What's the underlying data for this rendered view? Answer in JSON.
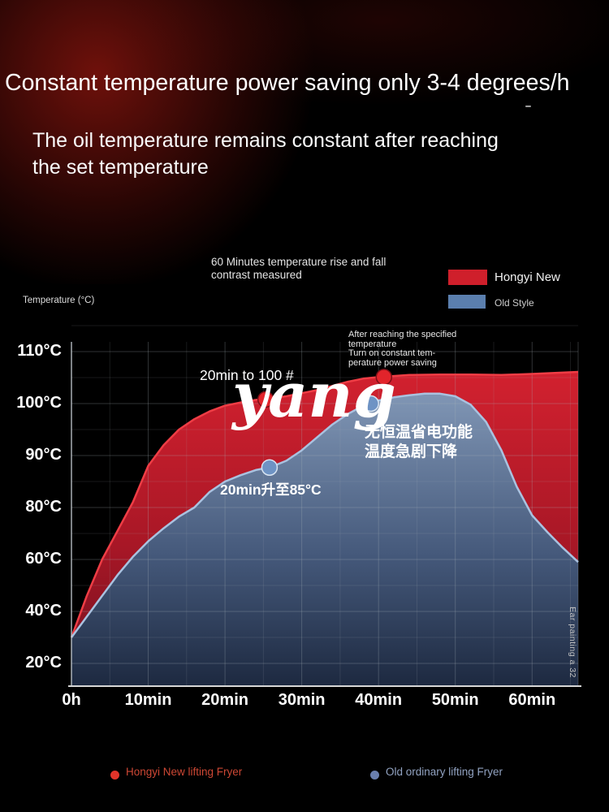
{
  "page": {
    "title": "Constant temperature power saving only 3-4 degrees/h",
    "dash": "-",
    "subtitle_line1": "The oil temperature remains constant after reaching",
    "subtitle_line2": "the set temperature"
  },
  "chart": {
    "caption_line1": "60 Minutes temperature rise and fall",
    "caption_line2": "contrast measured",
    "y_axis_label": "Temperature (°C)",
    "legend": [
      {
        "label": "Hongyi New",
        "color": "#cf1f2b"
      },
      {
        "label": "Old Style",
        "color": "#5b7fae"
      }
    ],
    "watermark": "yang",
    "side_note": "Ear painting a 32"
  },
  "chart_data": {
    "type": "area",
    "title": "60 Minutes temperature rise and fall contrast measured",
    "xlabel": "",
    "ylabel": "Temperature (°C)",
    "x_unit": "minutes",
    "x_ticks": [
      "0h",
      "10min",
      "20min",
      "30min",
      "40min",
      "50min",
      "60min"
    ],
    "x_tick_values": [
      0,
      10,
      20,
      30,
      40,
      50,
      60
    ],
    "y_ticks": [
      "110°C",
      "100°C",
      "90°C",
      "80°C",
      "60°C",
      "40°C",
      "20°C"
    ],
    "y_tick_values": [
      110,
      100,
      90,
      80,
      60,
      40,
      20
    ],
    "grid": true,
    "series": [
      {
        "name": "Hongyi New",
        "line_color": "#ef3d45",
        "fill": [
          "#d2212f",
          "#a81726",
          "#701020"
        ],
        "points": [
          [
            0,
            30
          ],
          [
            2,
            46
          ],
          [
            4,
            60
          ],
          [
            6,
            71
          ],
          [
            8,
            81
          ],
          [
            10,
            88
          ],
          [
            12,
            92
          ],
          [
            14,
            95
          ],
          [
            16,
            97
          ],
          [
            18,
            98.5
          ],
          [
            20,
            99.6
          ],
          [
            22,
            100.2
          ],
          [
            24,
            100.7
          ],
          [
            26,
            101
          ],
          [
            28,
            101.4
          ],
          [
            30,
            102
          ],
          [
            32,
            102.6
          ],
          [
            34,
            103.4
          ],
          [
            36,
            104.2
          ],
          [
            38,
            104.8
          ],
          [
            40,
            105.1
          ],
          [
            44,
            105.5
          ],
          [
            48,
            105.6
          ],
          [
            52,
            105.6
          ],
          [
            56,
            105.5
          ],
          [
            60,
            105.7
          ],
          [
            63,
            105.9
          ],
          [
            66,
            106.1
          ]
        ]
      },
      {
        "name": "Old Style",
        "line_color": "#a9c2e0",
        "fill": [
          "#8096b5",
          "#45597b",
          "#1d2940"
        ],
        "points": [
          [
            0,
            30
          ],
          [
            2,
            38
          ],
          [
            4,
            46
          ],
          [
            6,
            54
          ],
          [
            8,
            61
          ],
          [
            10,
            67
          ],
          [
            12,
            72
          ],
          [
            14,
            76.5
          ],
          [
            16,
            80
          ],
          [
            18,
            83
          ],
          [
            20,
            85
          ],
          [
            22,
            86.2
          ],
          [
            24,
            87.2
          ],
          [
            26,
            87.8
          ],
          [
            28,
            89
          ],
          [
            30,
            91
          ],
          [
            32,
            93.5
          ],
          [
            34,
            96
          ],
          [
            36,
            98
          ],
          [
            38,
            99.6
          ],
          [
            40,
            100.6
          ],
          [
            42,
            101.2
          ],
          [
            44,
            101.6
          ],
          [
            46,
            101.9
          ],
          [
            48,
            101.9
          ],
          [
            50,
            101.4
          ],
          [
            52,
            99.8
          ],
          [
            54,
            96.5
          ],
          [
            56,
            91
          ],
          [
            58,
            84
          ],
          [
            60,
            77
          ],
          [
            62,
            70.5
          ],
          [
            64,
            64.5
          ],
          [
            66,
            59
          ]
        ]
      }
    ],
    "markers": [
      {
        "series": "Hongyi New",
        "t": 25.3,
        "value": 100.8,
        "color": "#e2242b",
        "ring": "#7e0f16",
        "label": "20min to 100 #"
      },
      {
        "series": "Hongyi New",
        "t": 40.7,
        "value": 105.1,
        "color": "#e2242b",
        "ring": "#7e0f16",
        "label_lines": [
          "After reaching the specified",
          "temperature",
          "Turn on constant tem-",
          "perature power saving"
        ]
      },
      {
        "series": "Old Style",
        "t": 25.8,
        "value": 87.7,
        "color": "#6e93c4",
        "ring": "#d8e4f2",
        "label": "20min升至85°C"
      },
      {
        "series": "Old Style",
        "t": 39,
        "value": 100,
        "color": "#6e93c4",
        "ring": "#d8e4f2",
        "label_lines": [
          "无恒温省电功能",
          "温度急剧下降"
        ]
      }
    ]
  },
  "footer": {
    "legend": [
      {
        "label": "Hongyi New lifting Fryer",
        "dot_color": "#e2342a",
        "text_color": "#cd4734"
      },
      {
        "label": "Old ordinary lifting Fryer",
        "dot_color": "#6a7fae",
        "text_color": "#92a3c2"
      }
    ]
  }
}
